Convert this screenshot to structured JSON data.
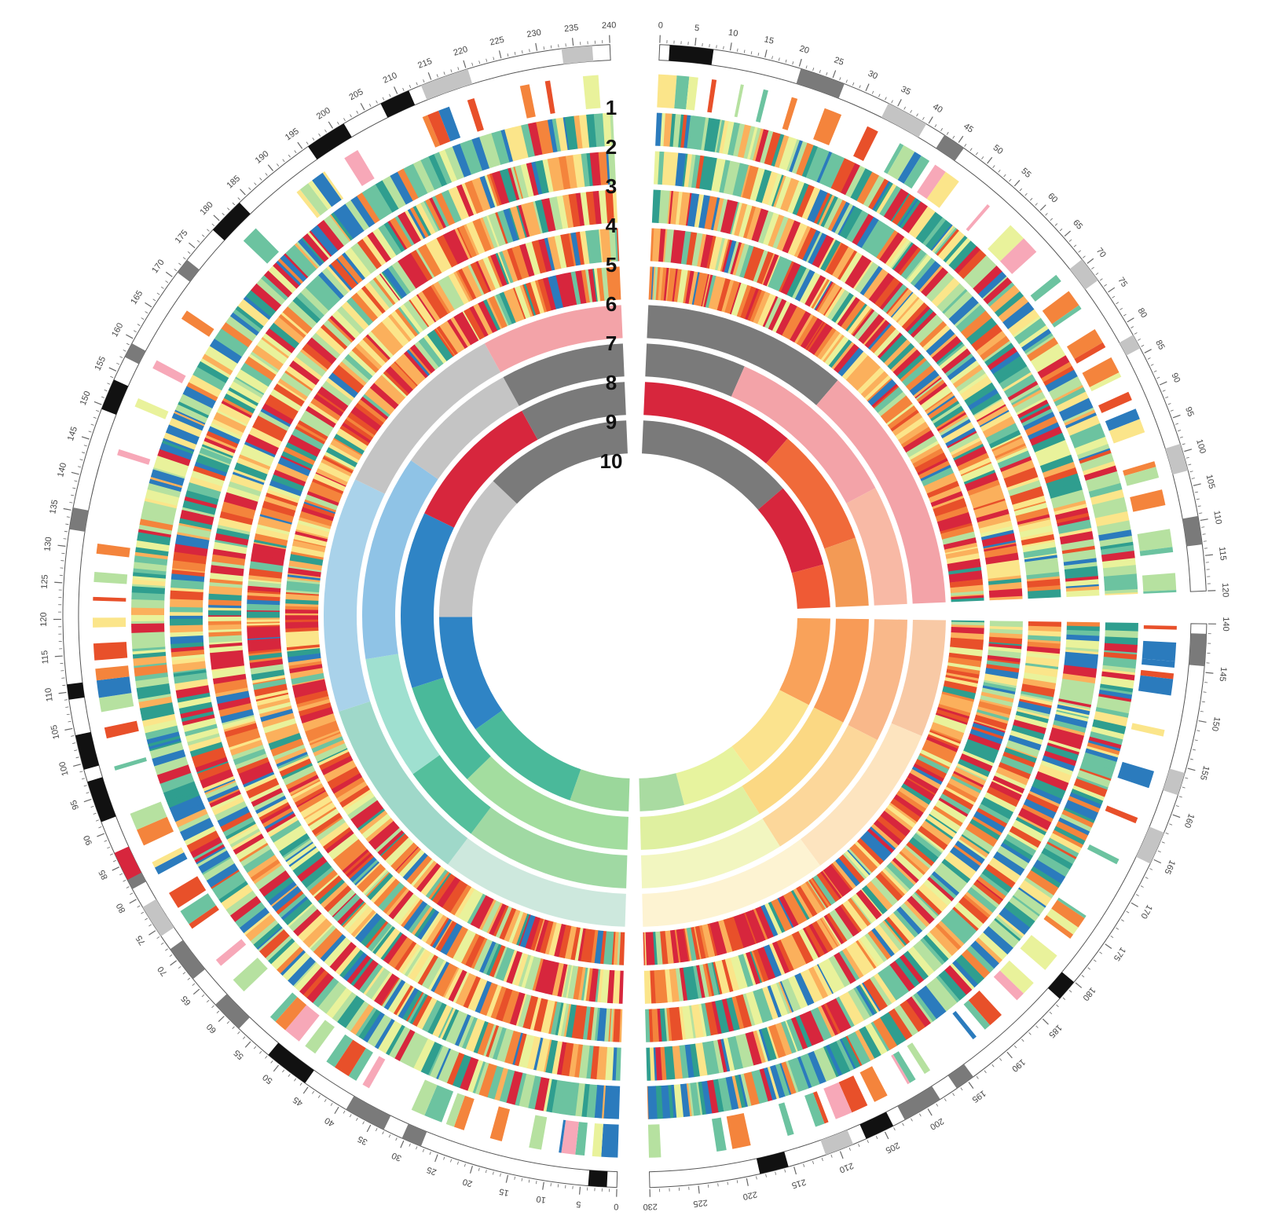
{
  "ring_labels": [
    "1",
    "2",
    "3",
    "4",
    "5",
    "6",
    "7",
    "8",
    "9",
    "10"
  ],
  "chromosomes": [
    {
      "id": "chr-a",
      "length": 120,
      "start_deg": 90.8,
      "end_deg": 179.2
    },
    {
      "id": "chr-b",
      "length": 240,
      "start_deg": 180.8,
      "end_deg": 358.8
    }
  ],
  "tick_labels": {
    "chr-a": [
      "0",
      "5",
      "10",
      "15",
      "20",
      "25",
      "30",
      "35",
      "40",
      "45",
      "50",
      "55",
      "60",
      "65",
      "70",
      "75",
      "80",
      "85",
      "90",
      "95",
      "100",
      "105",
      "110",
      "115",
      "120"
    ],
    "chr-b": [
      "0",
      "5",
      "10",
      "15",
      "20",
      "25",
      "30",
      "35",
      "40",
      "45",
      "50",
      "55",
      "60",
      "65",
      "70",
      "75",
      "80",
      "85",
      "90",
      "95",
      "100",
      "105",
      "110",
      "115",
      "120",
      "125",
      "130",
      "135",
      "140",
      "145",
      "150",
      "155",
      "160",
      "165",
      "170",
      "175",
      "180",
      "185",
      "190",
      "195",
      "200",
      "205",
      "210",
      "215",
      "220",
      "225",
      "230",
      "235",
      "240"
    ],
    "chr-c": [
      "140",
      "145",
      "150",
      "155",
      "160",
      "165",
      "170",
      "175",
      "180",
      "185",
      "190",
      "195",
      "200",
      "205",
      "210",
      "215",
      "220",
      "225",
      "230"
    ]
  },
  "palette": {
    "heat": [
      "#d7263d",
      "#e8502a",
      "#f4843c",
      "#fbb05c",
      "#fbe58a",
      "#e9f29b",
      "#b6e1a0",
      "#6cc3a0",
      "#2f9e8f",
      "#2b7bbd"
    ],
    "heat_weights": [
      3,
      2,
      2,
      2,
      3,
      3,
      3,
      2,
      2,
      2
    ],
    "sparse": [
      "#2b7bbd",
      "#e8502a",
      "#f4843c",
      "#fbe58a",
      "#f7a8b8",
      "#b6e1a0",
      "#e9f29b",
      "#6cc3a0"
    ],
    "band_black": "#111111",
    "band_dark": "#7a7a7a",
    "band_light": "#c4c4c4"
  },
  "chart_data": {
    "type": "circular-heatmap",
    "rings": 10,
    "segments": [
      {
        "name": "chr-a",
        "inner_rings": {
          "7": [
            [
              "#7a7a7a",
              0.45
            ],
            [
              "#f3a3a8",
              0.55
            ]
          ],
          "8": [
            [
              "#7a7a7a",
              0.25
            ],
            [
              "#f3a3a8",
              0.45
            ],
            [
              "#f8b9a5",
              0.3
            ]
          ],
          "9": [
            [
              "#d7263d",
              0.45
            ],
            [
              "#f06a3a",
              0.35
            ],
            [
              "#f39a55",
              0.2
            ]
          ],
          "10": [
            [
              "#7a7a7a",
              0.55
            ],
            [
              "#d7263d",
              0.3
            ],
            [
              "#ef5a35",
              0.15
            ]
          ]
        }
      },
      {
        "name": "chr-c",
        "inner_rings": {
          "7": [
            [
              "#f8c9a5",
              0.25
            ],
            [
              "#fde4bf",
              0.35
            ],
            [
              "#fdf3d2",
              0.4
            ]
          ],
          "8": [
            [
              "#f9b88a",
              0.3
            ],
            [
              "#fcd79a",
              0.35
            ],
            [
              "#f2f6c0",
              0.35
            ]
          ],
          "9": [
            [
              "#f89b57",
              0.3
            ],
            [
              "#fbd883",
              0.35
            ],
            [
              "#dff0a0",
              0.35
            ]
          ],
          "10": [
            [
              "#f9a25a",
              0.3
            ],
            [
              "#fbe38e",
              0.3
            ],
            [
              "#e7f39e",
              0.25
            ],
            [
              "#a9dba1",
              0.15
            ]
          ]
        }
      },
      {
        "name": "chr-b",
        "inner_rings": {
          "7": [
            [
              "#cde8dd",
              0.2
            ],
            [
              "#9fd8c9",
              0.2
            ],
            [
              "#a9d2ea",
              0.25
            ],
            [
              "#c4c4c4",
              0.2
            ],
            [
              "#f3a3a8",
              0.15
            ]
          ],
          "8": [
            [
              "#a0d9a3",
              0.2
            ],
            [
              "#54bf9c",
              0.1
            ],
            [
              "#9fe0d0",
              0.15
            ],
            [
              "#8fc3e6",
              0.25
            ],
            [
              "#c4c4c4",
              0.15
            ],
            [
              "#7a7a7a",
              0.15
            ]
          ],
          "9": [
            [
              "#a3dd9f",
              0.25
            ],
            [
              "#4ab99a",
              0.15
            ],
            [
              "#2f84c5",
              0.25
            ],
            [
              "#d7263d",
              0.2
            ],
            [
              "#7a7a7a",
              0.15
            ]
          ],
          "10": [
            [
              "#9bd79b",
              0.1
            ],
            [
              "#4ab99a",
              0.2
            ],
            [
              "#2f84c5",
              0.2
            ],
            [
              "#c4c4c4",
              0.25
            ],
            [
              "#7a7a7a",
              0.25
            ]
          ]
        }
      }
    ]
  }
}
